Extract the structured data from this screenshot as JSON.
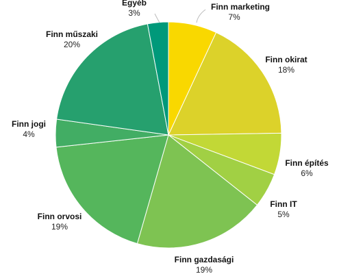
{
  "chart_data": {
    "type": "pie",
    "start_angle_deg": 0,
    "direction": "clockwise",
    "slices": [
      {
        "label": "Finn marketing",
        "value": 7,
        "value_label": "7%",
        "color": "#f9d800"
      },
      {
        "label": "Finn okirat",
        "value": 18,
        "value_label": "18%",
        "color": "#dcd22a"
      },
      {
        "label": "Finn építés",
        "value": 6,
        "value_label": "6%",
        "color": "#c2d836"
      },
      {
        "label": "Finn IT",
        "value": 5,
        "value_label": "5%",
        "color": "#a1d044"
      },
      {
        "label": "Finn gazdasági",
        "value": 19,
        "value_label": "19%",
        "color": "#7ec352"
      },
      {
        "label": "Finn orvosi",
        "value": 19,
        "value_label": "19%",
        "color": "#55b65c"
      },
      {
        "label": "Finn jogi",
        "value": 4,
        "value_label": "4%",
        "color": "#42ad64"
      },
      {
        "label": "Finn műszaki",
        "value": 20,
        "value_label": "20%",
        "color": "#26a06e"
      },
      {
        "label": "Egyéb",
        "value": 3,
        "value_label": "3%",
        "color": "#00997a"
      }
    ]
  }
}
